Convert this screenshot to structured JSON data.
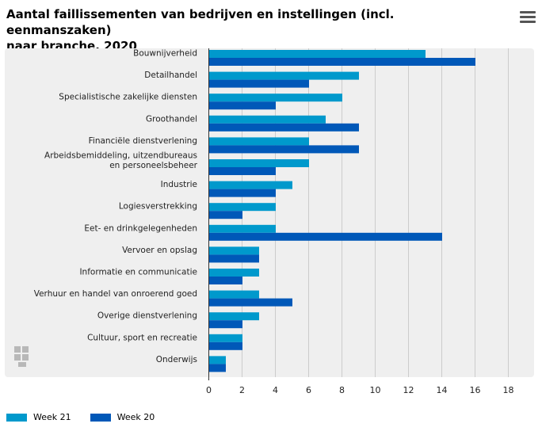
{
  "header": {
    "title_line1": "Aantal faillissementen van bedrijven en instellingen (incl. eenmanszaken)",
    "title_line2": "naar branche, 2020",
    "menu_icon": "hamburger-menu-icon",
    "watermark_icon": "cbs-logo-icon"
  },
  "colors": {
    "week21": "#0099cc",
    "week20": "#0058b8",
    "panel": "#efefef",
    "grid": "#cccccc"
  },
  "chart_data": {
    "type": "bar",
    "orientation": "horizontal",
    "title": "Aantal faillissementen van bedrijven en instellingen (incl. eenmanszaken) naar branche, 2020",
    "categories": [
      [
        "Bouwnijverheid"
      ],
      [
        "Detailhandel"
      ],
      [
        "Specialistische zakelijke diensten"
      ],
      [
        "Groothandel"
      ],
      [
        "Financiële dienstverlening"
      ],
      [
        "Arbeidsbemiddeling, uitzendbureaus",
        "en personeelsbeheer"
      ],
      [
        "Industrie"
      ],
      [
        "Logiesverstrekking"
      ],
      [
        "Eet- en drinkgelegenheden"
      ],
      [
        "Vervoer en opslag"
      ],
      [
        "Informatie en communicatie"
      ],
      [
        "Verhuur en handel van onroerend goed"
      ],
      [
        "Overige dienstverlening"
      ],
      [
        "Cultuur, sport en recreatie"
      ],
      [
        "Onderwijs"
      ]
    ],
    "series": [
      {
        "name": "Week 21",
        "color": "#0099cc",
        "values": [
          13,
          9,
          8,
          7,
          6,
          6,
          5,
          4,
          4,
          3,
          3,
          3,
          3,
          2,
          1
        ]
      },
      {
        "name": "Week 20",
        "color": "#0058b8",
        "values": [
          16,
          6,
          4,
          9,
          9,
          4,
          4,
          2,
          14,
          3,
          2,
          5,
          2,
          2,
          1
        ]
      }
    ],
    "xlim": [
      0,
      18
    ],
    "xticks": [
      0,
      2,
      4,
      6,
      8,
      10,
      12,
      14,
      16,
      18
    ],
    "grid": true,
    "legend_position": "bottom-left"
  }
}
